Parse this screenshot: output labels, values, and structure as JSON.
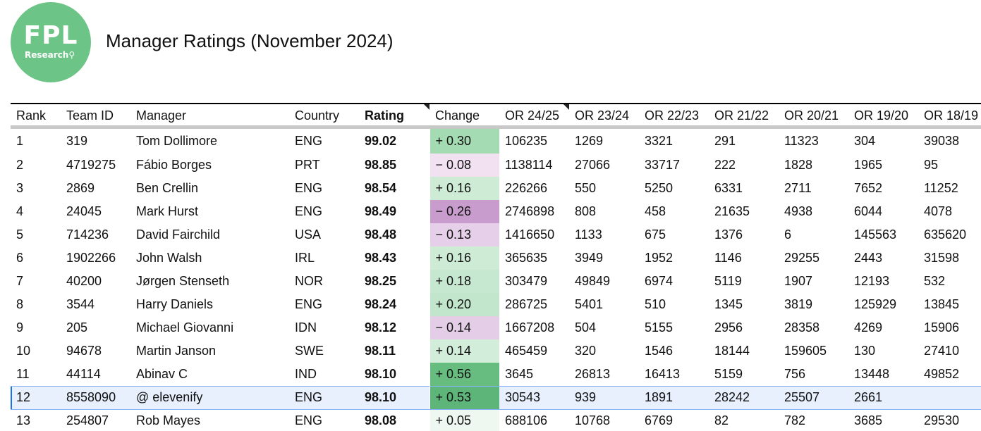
{
  "logo": {
    "big": "FPL",
    "small": "Research"
  },
  "title": "Manager Ratings (November 2024)",
  "columns": [
    "Rank",
    "Team ID",
    "Manager",
    "Country",
    "Rating",
    "Change",
    "OR 24/25",
    "OR 23/24",
    "OR 22/23",
    "OR 21/22",
    "OR 20/21",
    "OR 19/20",
    "OR 18/19"
  ],
  "rows": [
    {
      "rank": "1",
      "team_id": "319",
      "manager": "Tom Dollimore",
      "country": "ENG",
      "rating": "99.02",
      "change": "+ 0.30",
      "change_color": "#a4dbb3",
      "or": [
        "106235",
        "1269",
        "3321",
        "291",
        "11323",
        "304",
        "39038"
      ]
    },
    {
      "rank": "2",
      "team_id": "4719275",
      "manager": "Fábio Borges",
      "country": "PRT",
      "rating": "98.85",
      "change": "− 0.08",
      "change_color": "#f1e1f1",
      "or": [
        "1138114",
        "27066",
        "33717",
        "222",
        "1828",
        "1965",
        "95"
      ]
    },
    {
      "rank": "3",
      "team_id": "2869",
      "manager": "Ben Crellin",
      "country": "ENG",
      "rating": "98.54",
      "change": "+ 0.16",
      "change_color": "#cdebd5",
      "or": [
        "226266",
        "550",
        "5250",
        "6331",
        "2711",
        "7652",
        "11252"
      ]
    },
    {
      "rank": "4",
      "team_id": "24045",
      "manager": "Mark Hurst",
      "country": "ENG",
      "rating": "98.49",
      "change": "− 0.26",
      "change_color": "#c89ccc",
      "or": [
        "2746898",
        "808",
        "458",
        "21635",
        "4938",
        "6044",
        "4078"
      ]
    },
    {
      "rank": "5",
      "team_id": "714236",
      "manager": "David Fairchild",
      "country": "USA",
      "rating": "98.48",
      "change": "− 0.13",
      "change_color": "#e6cfe8",
      "or": [
        "1416650",
        "1133",
        "675",
        "1376",
        "6",
        "145563",
        "635620"
      ]
    },
    {
      "rank": "6",
      "team_id": "1902266",
      "manager": "John Walsh",
      "country": "IRL",
      "rating": "98.43",
      "change": "+ 0.16",
      "change_color": "#cdebd5",
      "or": [
        "365635",
        "3949",
        "1952",
        "1146",
        "29255",
        "2443",
        "31598"
      ]
    },
    {
      "rank": "7",
      "team_id": "40200",
      "manager": "Jørgen Stenseth",
      "country": "NOR",
      "rating": "98.25",
      "change": "+ 0.18",
      "change_color": "#c7e8d0",
      "or": [
        "303479",
        "49849",
        "6974",
        "5119",
        "1907",
        "12193",
        "532"
      ]
    },
    {
      "rank": "8",
      "team_id": "3544",
      "manager": "Harry Daniels",
      "country": "ENG",
      "rating": "98.24",
      "change": "+ 0.20",
      "change_color": "#c1e6cb",
      "or": [
        "286725",
        "5401",
        "510",
        "1345",
        "3819",
        "125929",
        "13845"
      ]
    },
    {
      "rank": "9",
      "team_id": "205",
      "manager": "Michael Giovanni",
      "country": "IDN",
      "rating": "98.12",
      "change": "− 0.14",
      "change_color": "#e4cde7",
      "or": [
        "1667208",
        "504",
        "5155",
        "2956",
        "28358",
        "4269",
        "15906"
      ]
    },
    {
      "rank": "10",
      "team_id": "94678",
      "manager": "Martin Janson",
      "country": "SWE",
      "rating": "98.11",
      "change": "+ 0.14",
      "change_color": "#d3eddb",
      "or": [
        "465459",
        "320",
        "1546",
        "18144",
        "159605",
        "130",
        "27410"
      ]
    },
    {
      "rank": "11",
      "team_id": "44114",
      "manager": "Abinav C",
      "country": "IND",
      "rating": "98.10",
      "change": "+ 0.56",
      "change_color": "#66bd7f",
      "or": [
        "3645",
        "26813",
        "16413",
        "5159",
        "756",
        "13448",
        "49852"
      ]
    },
    {
      "rank": "12",
      "team_id": "8558090",
      "manager": "@ elevenify",
      "country": "ENG",
      "rating": "98.10",
      "change": "+ 0.53",
      "change_color": "#5db57a",
      "or": [
        "30543",
        "939",
        "1891",
        "28242",
        "25507",
        "2661",
        ""
      ]
    },
    {
      "rank": "13",
      "team_id": "254807",
      "manager": "Rob Mayes",
      "country": "ENG",
      "rating": "98.08",
      "change": "+ 0.05",
      "change_color": "#eef7f0",
      "or": [
        "688106",
        "10768",
        "6769",
        "82",
        "782",
        "3685",
        "29530"
      ]
    }
  ]
}
